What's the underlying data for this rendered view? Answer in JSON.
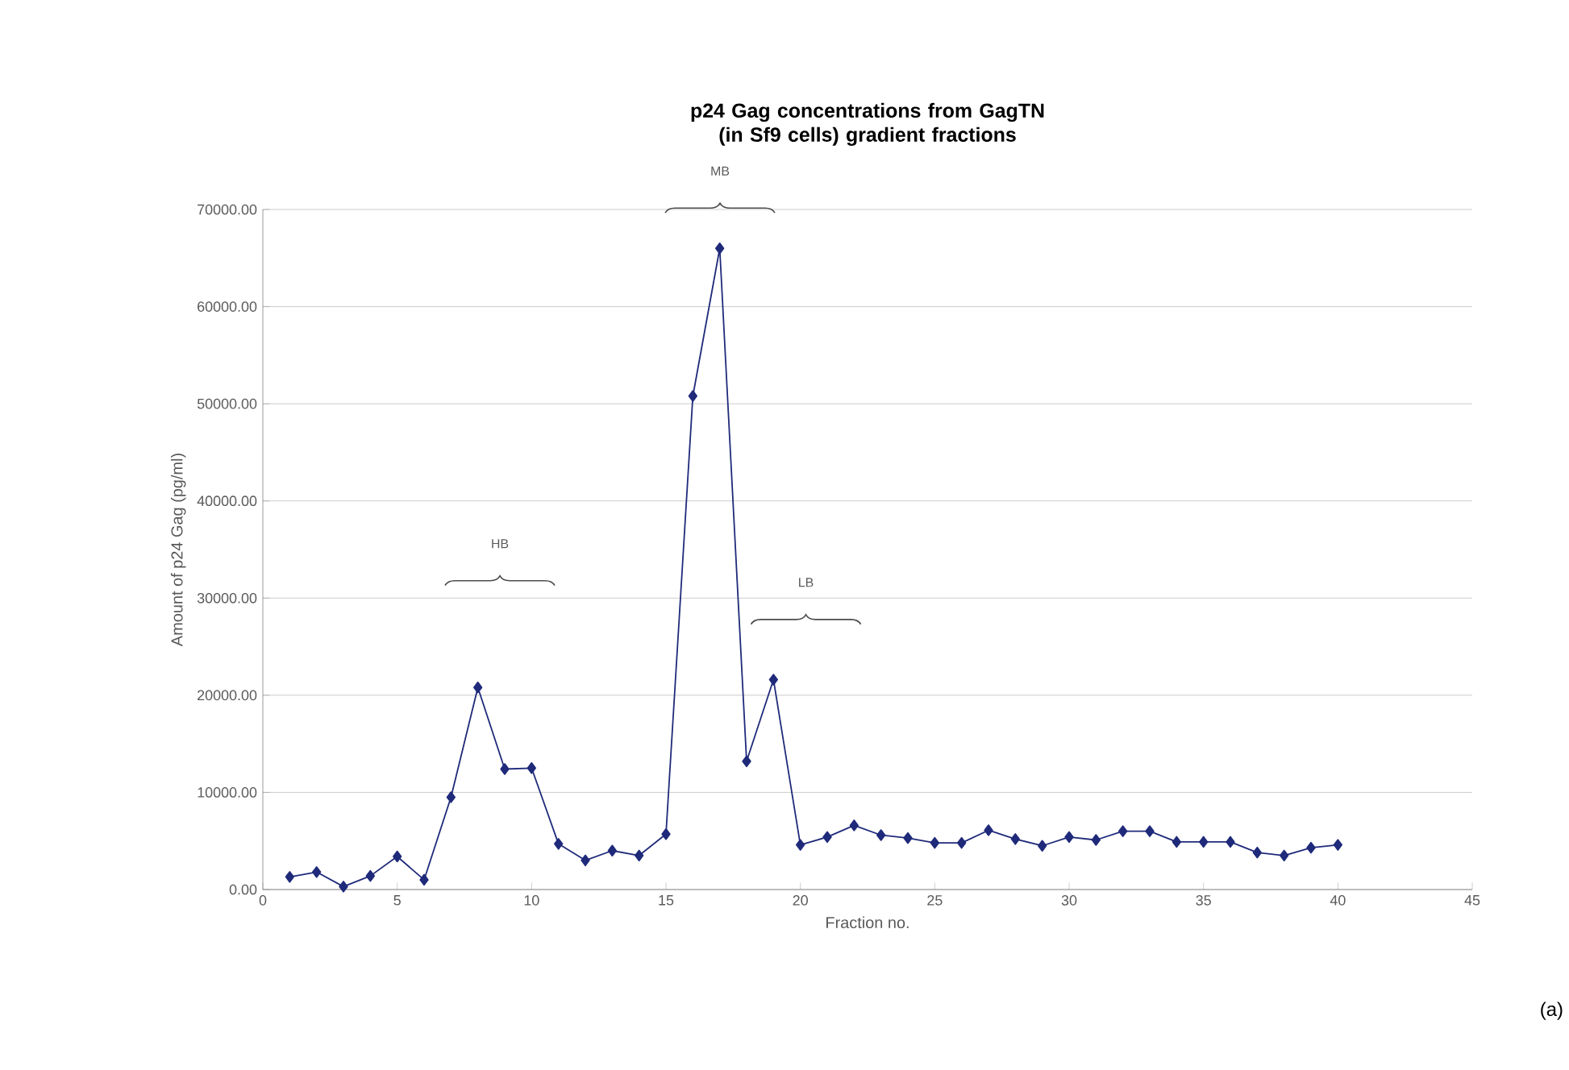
{
  "chart_data": {
    "type": "line",
    "title": "p24 Gag concentrations from GagTN (in Sf9 cells) gradient fractions",
    "xlabel": "Fraction no.",
    "ylabel": "Amount of p24 Gag (pg/ml)",
    "x": [
      1,
      2,
      3,
      4,
      5,
      6,
      7,
      8,
      9,
      10,
      11,
      12,
      13,
      14,
      15,
      16,
      17,
      18,
      19,
      20,
      21,
      22,
      23,
      24,
      25,
      26,
      27,
      28,
      29,
      30,
      31,
      32,
      33,
      34,
      35,
      36,
      37,
      38,
      39,
      40
    ],
    "series": [
      {
        "color": "#1f2a7a",
        "values": [
          1300,
          1800,
          300,
          1400,
          3400,
          1000,
          9500,
          20800,
          12400,
          12500,
          4700,
          3000,
          4000,
          3500,
          5700,
          50800,
          66000,
          13200,
          21600,
          4600,
          5400,
          6600,
          5600,
          5300,
          4800,
          4800,
          6100,
          5200,
          4500,
          5400,
          5100,
          6000,
          6000,
          4900,
          4900,
          4900,
          3800,
          3500,
          4300,
          4600
        ]
      }
    ],
    "xlim": [
      0,
      45
    ],
    "xticks": [
      0,
      5,
      10,
      15,
      20,
      25,
      30,
      35,
      40,
      45
    ],
    "ylim": [
      0,
      70000
    ],
    "yticks": [
      {
        "value": 0,
        "label": "0.00"
      },
      {
        "value": 10000,
        "label": "10000.00"
      },
      {
        "value": 20000,
        "label": "20000.00"
      },
      {
        "value": 30000,
        "label": "30000.00"
      },
      {
        "value": 40000,
        "label": "40000.00"
      },
      {
        "value": 50000,
        "label": "50000.00"
      },
      {
        "value": 60000,
        "label": "60000.00"
      },
      {
        "value": 70000,
        "label": "70000.00"
      }
    ],
    "grid": "y",
    "marker": "diamond",
    "line_style": "solid",
    "annotations": [
      "HB",
      "MB",
      "LB",
      "(a)"
    ]
  }
}
